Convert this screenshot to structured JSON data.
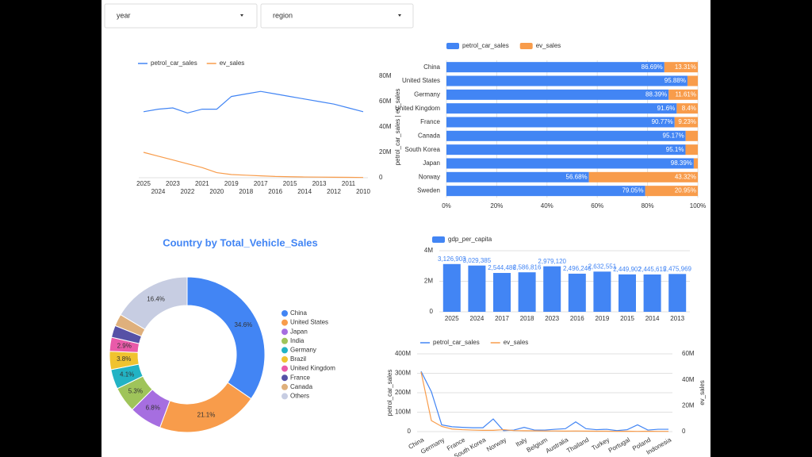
{
  "filters": [
    "year",
    "region"
  ],
  "chart_data": [
    {
      "type": "line",
      "categories": [
        "2025",
        "2024",
        "2023",
        "2022",
        "2021",
        "2020",
        "2019",
        "2018",
        "2017",
        "2016",
        "2015",
        "2014",
        "2013",
        "2012",
        "2011",
        "2010"
      ],
      "series": [
        {
          "name": "petrol_car_sales",
          "color": "#4285f4",
          "values": [
            52000000,
            54000000,
            55000000,
            51000000,
            54000000,
            54000000,
            64000000,
            66000000,
            68000000,
            66000000,
            64000000,
            62000000,
            60000000,
            58000000,
            55000000,
            52000000
          ]
        },
        {
          "name": "ev_sales",
          "color": "#f89c4b",
          "values": [
            20000000,
            17000000,
            14000000,
            11000000,
            8000000,
            4000000,
            2500000,
            2000000,
            1500000,
            1000000,
            800000,
            600000,
            500000,
            400000,
            300000,
            200000
          ]
        }
      ],
      "ylabel": "petrol_car_sales | ev_sales",
      "ylim": [
        0,
        80000000
      ],
      "yticks": [
        0,
        {
          "value": 20000000,
          "label": "20M"
        },
        {
          "value": 40000000,
          "label": "40M"
        },
        {
          "value": 60000000,
          "label": "60M"
        },
        {
          "value": 80000000,
          "label": "80M"
        }
      ],
      "grid": false,
      "legend": "top"
    },
    {
      "type": "hbar",
      "stacked": true,
      "categories": [
        "China",
        "United States",
        "Germany",
        "United Kingdom",
        "France",
        "Canada",
        "South Korea",
        "Japan",
        "Norway",
        "Sweden"
      ],
      "series": [
        {
          "name": "petrol_car_sales",
          "color": "#4285f4",
          "values": [
            86.69,
            95.88,
            88.39,
            91.6,
            90.77,
            95.17,
            95.1,
            98.39,
            56.68,
            79.05
          ],
          "value_labels": [
            "86.69%",
            "95.88%",
            "88.39%",
            "91.6%",
            "90.77%",
            "95.17%",
            "95.1%",
            "98.39%",
            "56.68%",
            "79.05%"
          ]
        },
        {
          "name": "ev_sales",
          "color": "#f89c4b",
          "values": [
            13.31,
            4.12,
            11.61,
            8.4,
            9.23,
            4.83,
            4.9,
            1.61,
            43.32,
            20.95
          ],
          "value_labels": [
            "13.31%",
            null,
            "11.61%",
            "8.4%",
            "9.23%",
            null,
            null,
            null,
            "43.32%",
            "20.95%"
          ]
        }
      ],
      "xlim": [
        0,
        100
      ],
      "xticks": [
        {
          "value": 0,
          "label": "0%"
        },
        {
          "value": 20,
          "label": "20%"
        },
        {
          "value": 40,
          "label": "40%"
        },
        {
          "value": 60,
          "label": "60%"
        },
        {
          "value": 80,
          "label": "80%"
        },
        {
          "value": 100,
          "label": "100%"
        }
      ],
      "grid": true,
      "legend": "top"
    },
    {
      "type": "donut",
      "title": "Country by Total_Vehicle_Sales",
      "categories": [
        "China",
        "United States",
        "Japan",
        "India",
        "Germany",
        "Brazil",
        "United Kingdom",
        "France",
        "Canada",
        "Others"
      ],
      "values": [
        34.6,
        21.1,
        6.8,
        5.3,
        4.1,
        3.8,
        2.9,
        2.5,
        2.5,
        16.4
      ],
      "value_labels": [
        "34.6%",
        "21.1%",
        "6.8%",
        "5.3%",
        "4.1%",
        "3.8%",
        "2.9%",
        null,
        null,
        "16.4%"
      ],
      "colors": [
        "#4285f4",
        "#f89c4b",
        "#a66ee0",
        "#9fc45a",
        "#22b3c4",
        "#f0c330",
        "#e95aa9",
        "#5651a6",
        "#dfb07c",
        "#c7cde2"
      ],
      "legend": "right"
    },
    {
      "type": "bar",
      "categories": [
        "2025",
        "2024",
        "2017",
        "2018",
        "2023",
        "2016",
        "2019",
        "2015",
        "2014",
        "2013"
      ],
      "series": [
        {
          "name": "gdp_per_capita",
          "color": "#4285f4",
          "values": [
            3126903,
            3029385,
            2544486,
            2586816,
            2979120,
            2496246,
            2632551,
            2449902,
            2445615,
            2475969
          ],
          "value_labels": [
            "3,126,903",
            "3,029,385",
            "2,544,486",
            "2,586,816",
            "2,979,120",
            "2,496,246",
            "2,632,551",
            "2,449,902",
            "2,445,615",
            "2,475,969"
          ]
        }
      ],
      "ylim": [
        0,
        4000000
      ],
      "yticks": [
        0,
        {
          "value": 2000000,
          "label": "2M"
        },
        {
          "value": 4000000,
          "label": "4M"
        }
      ],
      "grid": true,
      "legend": "top"
    },
    {
      "type": "line",
      "categories": [
        "China",
        null,
        "Germany",
        null,
        "France",
        null,
        "South Korea",
        null,
        "Norway",
        null,
        "Italy",
        null,
        "Belgium",
        null,
        "Australia",
        null,
        "Thailand",
        null,
        "Turkey",
        null,
        "Portugal",
        null,
        "Poland",
        null,
        "Indonesia"
      ],
      "series": [
        {
          "name": "petrol_car_sales",
          "color": "#4285f4",
          "values": [
            310000000,
            205000000,
            35000000,
            25000000,
            22000000,
            20000000,
            20000000,
            65000000,
            5000000,
            8000000,
            22000000,
            8000000,
            8000000,
            12000000,
            15000000,
            50000000,
            15000000,
            10000000,
            12000000,
            5000000,
            10000000,
            35000000,
            8000000,
            12000000,
            12000000
          ]
        },
        {
          "name": "ev_sales",
          "color": "#f89c4b",
          "axis": "y2",
          "values": [
            46000000,
            8500000,
            4000000,
            2000000,
            1500000,
            1200000,
            1000000,
            1000000,
            1500000,
            800000,
            700000,
            600000,
            500000,
            500000,
            400000,
            500000,
            400000,
            300000,
            300000,
            200000,
            300000,
            200000,
            300000,
            200000,
            200000
          ]
        }
      ],
      "ylabel": "petrol_car_sales",
      "y2label": "ev_sales",
      "ylim": [
        0,
        400000000
      ],
      "yticks": [
        0,
        {
          "value": 100000000,
          "label": "100M"
        },
        {
          "value": 200000000,
          "label": "200M"
        },
        {
          "value": 300000000,
          "label": "300M"
        },
        {
          "value": 400000000,
          "label": "400M"
        }
      ],
      "y2lim": [
        0,
        60000000
      ],
      "y2ticks": [
        0,
        {
          "value": 20000000,
          "label": "20M"
        },
        {
          "value": 40000000,
          "label": "40M"
        },
        {
          "value": 60000000,
          "label": "60M"
        }
      ],
      "grid": true,
      "legend": "top"
    }
  ]
}
